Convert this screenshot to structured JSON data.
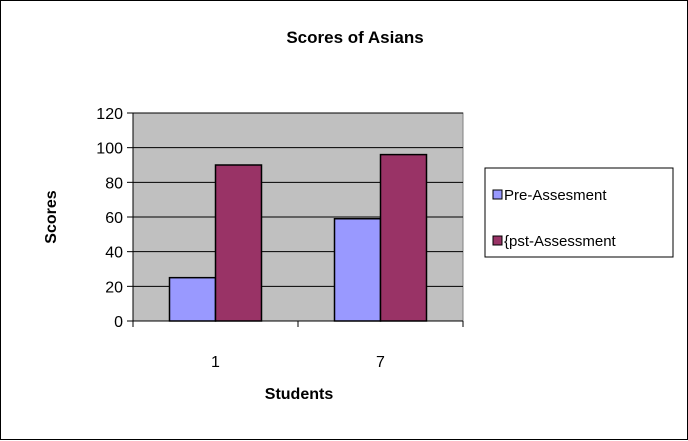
{
  "chart_data": {
    "type": "bar",
    "title": "Scores of Asians",
    "xlabel": "Students",
    "ylabel": "Scores",
    "categories": [
      "1",
      "7"
    ],
    "series": [
      {
        "name": "Pre-Assesment",
        "values": [
          25,
          59
        ],
        "color": "#9999ff"
      },
      {
        "name": "{pst-Assessment",
        "values": [
          90,
          96
        ],
        "color": "#993366"
      }
    ],
    "ylim": [
      0,
      120
    ],
    "yticks": [
      0,
      20,
      40,
      60,
      80,
      100,
      120
    ],
    "grid": true,
    "plot_background": "#c0c0c0",
    "legend_position": "right"
  }
}
